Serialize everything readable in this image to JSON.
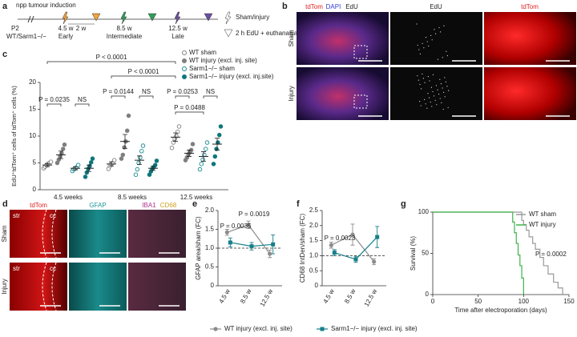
{
  "panel_letters": [
    "a",
    "b",
    "c",
    "d",
    "e",
    "f",
    "g"
  ],
  "timeline": {
    "title": "npp tumour induction",
    "start": "P2",
    "genotype": "WT/Sarm1−/−",
    "gap": "2 w",
    "stages": [
      {
        "time": "4.5 w",
        "name": "Early"
      },
      {
        "time": "8.5 w",
        "name": "Intermediate"
      },
      {
        "time": "12.5 w",
        "name": "Late"
      }
    ],
    "legend": [
      "Sham/injury",
      "2 h EdU + euthanasia"
    ]
  },
  "images_b": {
    "merge": [
      "tdTom",
      "DAPI",
      "EdU"
    ],
    "col2": "EdU",
    "col3": "tdTom",
    "rows": [
      "Sham",
      "Injury"
    ]
  },
  "images_d": {
    "col1": "tdTom",
    "col2": "GFAP",
    "col3": [
      "IBA1",
      "CD68"
    ],
    "rows": [
      "Sham",
      "Injury"
    ],
    "regions": [
      "str",
      "cc"
    ]
  },
  "chart_data": [
    {
      "type": "dot",
      "ylabel": "EdU⁺tdTom⁺ cells of tdTom⁺ cells (%)",
      "categories": [
        "4.5 weeks",
        "8.5 weeks",
        "12.5 weeks"
      ],
      "ylim": [
        0,
        20
      ],
      "yticks": [
        0,
        5,
        10,
        15,
        20
      ],
      "series": [
        {
          "name": "WT sham",
          "color": "#7f7f7f",
          "filled": false,
          "values": [
            4.6,
            4.8,
            9.8
          ],
          "errors": [
            0.3,
            0.4,
            0.8
          ],
          "points": [
            [
              4.0,
              4.3,
              4.6,
              4.8,
              5.0,
              5.2
            ],
            [
              3.9,
              4.4,
              4.8,
              5.0,
              5.5
            ],
            [
              7.8,
              8.8,
              9.5,
              10.0,
              10.8,
              11.8
            ]
          ]
        },
        {
          "name": "WT injury (excl. inj. site)",
          "color": "#7f7f7f",
          "filled": true,
          "values": [
            6.5,
            9.0,
            6.8
          ],
          "errors": [
            0.7,
            1.3,
            0.6
          ],
          "points": [
            [
              5.0,
              5.6,
              6.2,
              6.8,
              7.6,
              8.4
            ],
            [
              5.8,
              6.5,
              7.9,
              9.0,
              11.0,
              13.8
            ],
            [
              5.5,
              6.0,
              6.6,
              7.0,
              7.4,
              8.5
            ]
          ]
        },
        {
          "name": "Sarm1−/− sham",
          "color": "#178a90",
          "filled": false,
          "values": [
            4.0,
            5.5,
            6.2
          ],
          "errors": [
            0.3,
            0.8,
            0.9
          ],
          "points": [
            [
              3.5,
              3.8,
              4.0,
              4.2,
              4.6
            ],
            [
              2.8,
              3.8,
              5.0,
              6.0,
              7.2,
              8.2
            ],
            [
              3.8,
              4.8,
              5.6,
              6.5,
              7.6,
              8.8
            ]
          ]
        },
        {
          "name": "Sarm1−/− injury (excl. inj.site)",
          "color": "#0f767c",
          "filled": true,
          "values": [
            4.0,
            4.0,
            8.5
          ],
          "errors": [
            0.6,
            0.4,
            1.1
          ],
          "points": [
            [
              2.4,
              3.2,
              3.9,
              4.4,
              5.1,
              5.8
            ],
            [
              2.8,
              3.4,
              3.9,
              4.2,
              4.6,
              5.4
            ],
            [
              4.8,
              6.2,
              7.6,
              8.8,
              10.2,
              11.8
            ]
          ]
        }
      ],
      "annotations": [
        "P < 0.0001",
        "P < 0.0001",
        "P = 0.0235",
        "NS",
        "P = 0.0144",
        "NS",
        "P = 0.0253",
        "NS",
        "P = 0.0488"
      ]
    },
    {
      "type": "line",
      "ylabel": "GFAP area/sham (FC)",
      "categories": [
        "4.5 w",
        "8.5 w",
        "12.5 w"
      ],
      "ylim": [
        0,
        2
      ],
      "yticks": [
        0,
        0.5,
        {
          "value": 1,
          "label": "1.0"
        },
        1.5,
        {
          "value": 2,
          "label": "2.0"
        }
      ],
      "refline": 1,
      "series": [
        {
          "name": "WT injury (excl. inj. site)",
          "color": "#8c8c8c",
          "marker": "circle",
          "values": [
            1.42,
            1.62,
            0.85
          ],
          "errors": [
            0.08,
            0.1,
            0.1
          ]
        },
        {
          "name": "Sarm1−/− injury (excl. inj. site)",
          "color": "#177f8a",
          "marker": "square",
          "values": [
            1.15,
            1.05,
            1.1
          ],
          "errors": [
            0.12,
            0.1,
            0.25
          ]
        }
      ],
      "annotations": [
        "P = 0.0035",
        "P = 0.0019"
      ]
    },
    {
      "type": "line",
      "ylabel": "CD68 IntDen/sham (FC)",
      "categories": [
        "4.5 w",
        "8.5 w",
        "12.5 w"
      ],
      "ylim": [
        0,
        2.5
      ],
      "yticks": [
        0,
        0.5,
        {
          "value": 1,
          "label": "1.0"
        },
        1.5,
        {
          "value": 2,
          "label": "2.0"
        },
        2.5
      ],
      "refline": 1,
      "series": [
        {
          "name": "WT injury (excl. inj. site)",
          "color": "#8c8c8c",
          "marker": "circle",
          "values": [
            1.35,
            1.7,
            0.8
          ],
          "errors": [
            0.1,
            0.35,
            0.1
          ]
        },
        {
          "name": "Sarm1−/− injury (excl. inj. site)",
          "color": "#177f8a",
          "marker": "square",
          "values": [
            1.1,
            0.88,
            1.62
          ],
          "errors": [
            0.1,
            0.1,
            0.35
          ]
        }
      ],
      "annotations": [
        "P = 0.0023"
      ]
    },
    {
      "type": "survival",
      "ylabel": "Survival (%)",
      "xlabel": "Time after electroporation (days)",
      "xlim": [
        0,
        150
      ],
      "xticks": [
        0,
        50,
        100,
        150
      ],
      "ylim": [
        0,
        100
      ],
      "yticks": [
        0,
        50,
        100
      ],
      "series": [
        {
          "name": "WT sham",
          "color": "#9a9a9a",
          "x": [
            0,
            95,
            98,
            100,
            103,
            106,
            110,
            113,
            118,
            122,
            127,
            133,
            138,
            143
          ],
          "values": [
            100,
            100,
            90,
            85,
            78,
            70,
            62,
            55,
            45,
            35,
            25,
            15,
            8,
            0
          ]
        },
        {
          "name": "WT injury",
          "color": "#3cb44b",
          "x": [
            0,
            86,
            88,
            90,
            92,
            94,
            96,
            98,
            100
          ],
          "values": [
            100,
            100,
            88,
            75,
            62,
            48,
            35,
            20,
            0
          ]
        }
      ],
      "annotations": [
        "P = 0.0002"
      ]
    }
  ]
}
